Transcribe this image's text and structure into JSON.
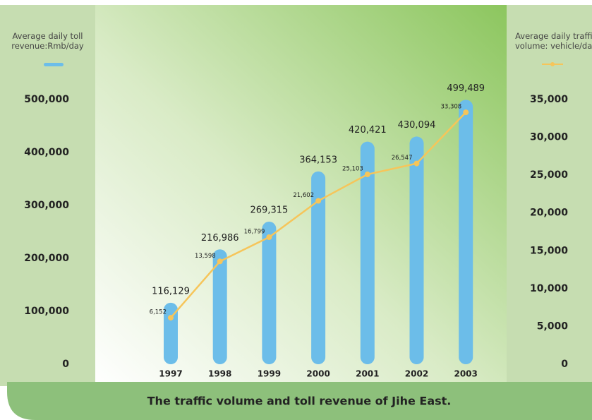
{
  "chart_data": {
    "type": "bar",
    "title": "The traffic volume and toll revenue of Jihe East.",
    "categories": [
      "1997",
      "1998",
      "1999",
      "2000",
      "2001",
      "2002",
      "2003"
    ],
    "series": [
      {
        "name": "Average daily toll revenue:Rmb/day",
        "type": "bar",
        "axis": "y",
        "color": "#6cbde9",
        "values": [
          116129,
          216986,
          269315,
          364153,
          420421,
          430094,
          499489
        ],
        "value_labels": [
          "116,129",
          "216,986",
          "269,315",
          "364,153",
          "420,421",
          "430,094",
          "499,489"
        ]
      },
      {
        "name": "Average daily traffic volume: vehicle/day",
        "type": "line",
        "axis": "y2",
        "color": "#f6c55a",
        "values": [
          6152,
          13598,
          16799,
          21602,
          25103,
          26547,
          33308
        ],
        "value_labels": [
          "6,152",
          "13,598",
          "16,799",
          "21,602",
          "25,103",
          "26,547",
          "33,308"
        ]
      }
    ],
    "ylim": [
      0,
      500000
    ],
    "yticks": [
      0,
      {
        "value": 100000,
        "label": "100,000"
      },
      {
        "value": 200000,
        "label": "200,000"
      },
      {
        "value": 300000,
        "label": "300,000"
      },
      {
        "value": 400000,
        "label": "400,000"
      },
      {
        "value": 500000,
        "label": "500,000"
      }
    ],
    "y2lim": [
      0,
      35000
    ],
    "y2ticks": [
      0,
      {
        "value": 5000,
        "label": "5,000"
      },
      {
        "value": 10000,
        "label": "10,000"
      },
      {
        "value": 15000,
        "label": "15,000"
      },
      {
        "value": 20000,
        "label": "20,000"
      },
      {
        "value": 25000,
        "label": "25,000"
      },
      {
        "value": 30000,
        "label": "30,000"
      },
      {
        "value": 35000,
        "label": "35,000"
      }
    ]
  }
}
